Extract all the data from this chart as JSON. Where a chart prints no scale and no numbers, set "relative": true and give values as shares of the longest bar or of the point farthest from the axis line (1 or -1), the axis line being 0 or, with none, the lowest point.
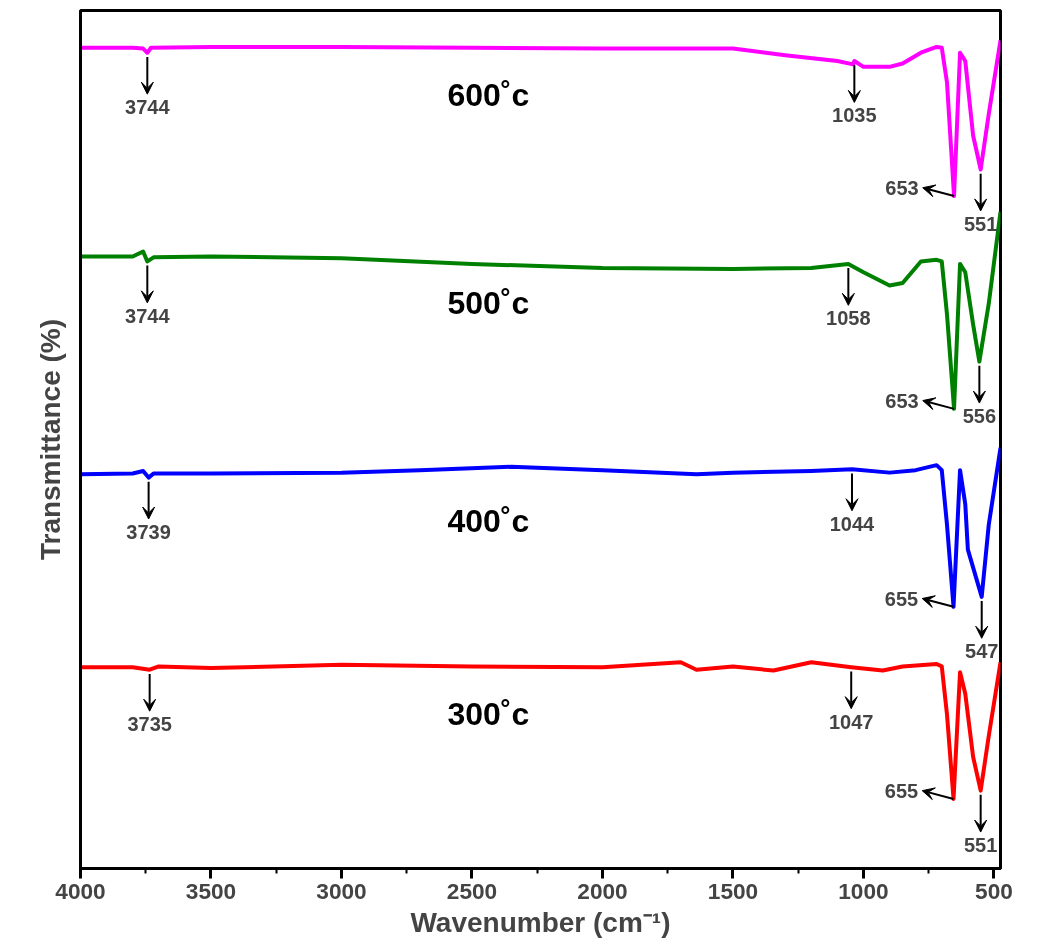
{
  "chart_data": {
    "type": "line",
    "relative": true,
    "xlabel": "Wavenumber (cm⁻¹)",
    "ylabel": "Transmittance (%)",
    "tick_labels": "x",
    "xlim": [
      4000,
      475
    ],
    "xticks": [
      4000,
      {
        "value": 3750,
        "label": null
      },
      3500,
      {
        "value": 3250,
        "label": null
      },
      3000,
      {
        "value": 2750,
        "label": null
      },
      2500,
      {
        "value": 2250,
        "label": null
      },
      2000,
      {
        "value": 1750,
        "label": null
      },
      1500,
      {
        "value": 1250,
        "label": null
      },
      1000,
      {
        "value": 750,
        "label": null
      },
      500
    ],
    "series": [
      {
        "name": "600˚c",
        "color": "#ff00ff",
        "x": [
          4000,
          3800,
          3760,
          3744,
          3730,
          3500,
          3000,
          2500,
          2000,
          1500,
          1300,
          1100,
          1040,
          1035,
          1000,
          900,
          850,
          780,
          720,
          700,
          680,
          653,
          630,
          610,
          580,
          551,
          520,
          475
        ],
        "values": [
          0.991,
          0.991,
          0.99,
          0.985,
          0.991,
          0.992,
          0.992,
          0.991,
          0.99,
          0.99,
          0.982,
          0.975,
          0.971,
          0.975,
          0.968,
          0.968,
          0.972,
          0.985,
          0.992,
          0.991,
          0.949,
          0.812,
          0.985,
          0.975,
          0.885,
          0.844,
          0.911,
          1.0
        ]
      },
      {
        "name": "500˚c",
        "color": "#008000",
        "x": [
          4000,
          3800,
          3760,
          3744,
          3720,
          3500,
          3000,
          2500,
          2000,
          1500,
          1200,
          1058,
          1000,
          900,
          850,
          780,
          720,
          700,
          680,
          653,
          630,
          610,
          580,
          556,
          520,
          475
        ],
        "values": [
          0.739,
          0.739,
          0.745,
          0.733,
          0.738,
          0.739,
          0.737,
          0.73,
          0.725,
          0.724,
          0.725,
          0.73,
          0.72,
          0.704,
          0.707,
          0.733,
          0.735,
          0.733,
          0.669,
          0.555,
          0.73,
          0.72,
          0.657,
          0.612,
          0.682,
          0.793
        ]
      },
      {
        "name": "400˚c",
        "color": "#0000ff",
        "x": [
          4000,
          3800,
          3760,
          3739,
          3720,
          3500,
          3000,
          2700,
          2350,
          2000,
          1640,
          1500,
          1200,
          1044,
          900,
          800,
          720,
          700,
          680,
          655,
          630,
          610,
          600,
          547,
          520,
          475
        ],
        "values": [
          0.476,
          0.477,
          0.48,
          0.472,
          0.477,
          0.477,
          0.478,
          0.481,
          0.485,
          0.481,
          0.476,
          0.478,
          0.48,
          0.482,
          0.478,
          0.481,
          0.487,
          0.481,
          0.415,
          0.316,
          0.481,
          0.44,
          0.385,
          0.328,
          0.415,
          0.508
        ]
      },
      {
        "name": "300˚c",
        "color": "#ff0000",
        "x": [
          4000,
          3800,
          3735,
          3700,
          3500,
          3000,
          2500,
          2000,
          1700,
          1640,
          1500,
          1345,
          1200,
          1047,
          926,
          850,
          720,
          700,
          680,
          655,
          630,
          610,
          580,
          551,
          520,
          475
        ],
        "values": [
          0.243,
          0.243,
          0.24,
          0.244,
          0.242,
          0.246,
          0.244,
          0.243,
          0.249,
          0.24,
          0.244,
          0.239,
          0.249,
          0.243,
          0.239,
          0.244,
          0.247,
          0.244,
          0.186,
          0.084,
          0.237,
          0.211,
          0.135,
          0.094,
          0.16,
          0.249
        ]
      }
    ],
    "annotations": [
      {
        "text": "3744",
        "x": 3744,
        "y": 0.985
      },
      {
        "text": "1035",
        "x": 1035,
        "y": 0.975
      },
      {
        "text": "653",
        "x": 653,
        "y": 0.812
      },
      {
        "text": "551",
        "x": 551,
        "y": 0.844
      },
      {
        "text": "3744",
        "x": 3744,
        "y": 0.733
      },
      {
        "text": "1058",
        "x": 1058,
        "y": 0.73
      },
      {
        "text": "653",
        "x": 653,
        "y": 0.555
      },
      {
        "text": "556",
        "x": 556,
        "y": 0.612
      },
      {
        "text": "3739",
        "x": 3739,
        "y": 0.472
      },
      {
        "text": "1044",
        "x": 1044,
        "y": 0.482
      },
      {
        "text": "655",
        "x": 655,
        "y": 0.316
      },
      {
        "text": "547",
        "x": 547,
        "y": 0.328
      },
      {
        "text": "3735",
        "x": 3735,
        "y": 0.24
      },
      {
        "text": "1047",
        "x": 1047,
        "y": 0.243
      },
      {
        "text": "655",
        "x": 655,
        "y": 0.084
      },
      {
        "text": "551",
        "x": 551,
        "y": 0.094
      }
    ]
  }
}
